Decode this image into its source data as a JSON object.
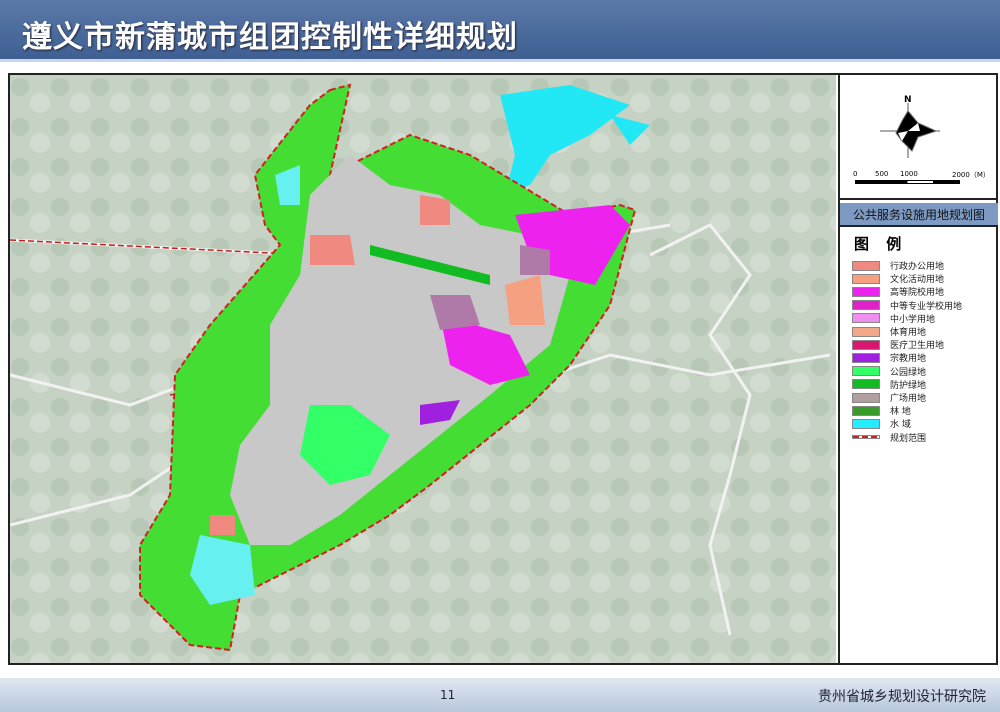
{
  "header": {
    "title": "遵义市新蒲城市组团控制性详细规划"
  },
  "compass": {
    "north_label": "N",
    "scale_labels": [
      "0",
      "500",
      "1000",
      "2000（M）"
    ]
  },
  "legend": {
    "panel_title": "公共服务设施用地规划图",
    "heading": "图 例",
    "items": [
      {
        "label": "行政办公用地",
        "color": "#f08a80"
      },
      {
        "label": "文化活动用地",
        "color": "#f5a080"
      },
      {
        "label": "高等院校用地",
        "color": "#ee22ee"
      },
      {
        "label": "中等专业学校用地",
        "color": "#e020c8"
      },
      {
        "label": "中小学用地",
        "color": "#f08ef0"
      },
      {
        "label": "体育用地",
        "color": "#f5a78a"
      },
      {
        "label": "医疗卫生用地",
        "color": "#d81870"
      },
      {
        "label": "宗教用地",
        "color": "#a020e0"
      },
      {
        "label": "公园绿地",
        "color": "#33ff66"
      },
      {
        "label": "防护绿地",
        "color": "#11bb22"
      },
      {
        "label": "广场用地",
        "color": "#b0a0a0"
      },
      {
        "label": "林 地",
        "color": "#3a9a2a"
      },
      {
        "label": "水 域",
        "color": "#22eeff"
      },
      {
        "label": "规划范围",
        "color": "#d02020"
      }
    ]
  },
  "map": {
    "zone_green": "#44dd33",
    "water": "#22e8f5",
    "road_color": "#e8e8e8",
    "boundary_color": "#d02020"
  },
  "footer": {
    "page_number": "11",
    "institute": "贵州省城乡规划设计研究院"
  }
}
